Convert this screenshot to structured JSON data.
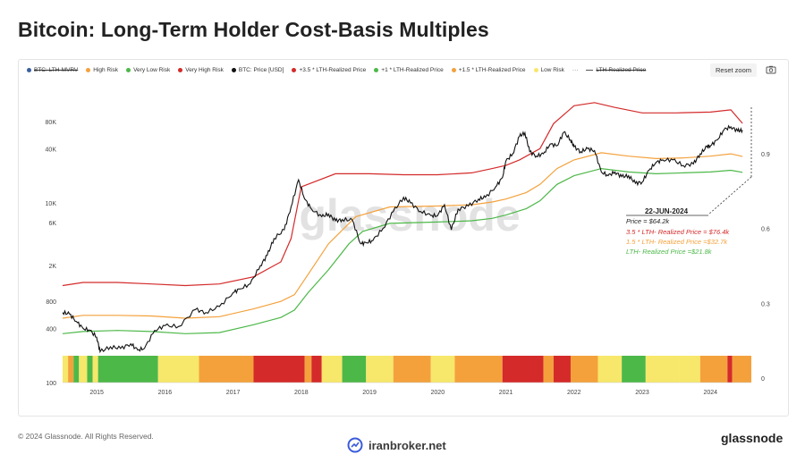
{
  "title": "Bitcoin: Long-Term Holder Cost-Basis Multiples",
  "legend": [
    {
      "label": "BTC: LTH-MVRV",
      "color": "#3a5fa0",
      "style": "dot",
      "struck": true
    },
    {
      "label": "High Risk",
      "color": "#f4a13c",
      "style": "dot",
      "struck": false
    },
    {
      "label": "Very Low Risk",
      "color": "#4cb848",
      "style": "dot",
      "struck": false
    },
    {
      "label": "Very High Risk",
      "color": "#d42a2a",
      "style": "dot",
      "struck": false
    },
    {
      "label": "BTC: Price [USD]",
      "color": "#111111",
      "style": "dot",
      "struck": false
    },
    {
      "label": "+3.5 * LTH-Realized Price",
      "color": "#d42a2a",
      "style": "dot",
      "struck": false
    },
    {
      "label": "+1 * LTH-Realized Price",
      "color": "#4cb848",
      "style": "dot",
      "struck": false
    },
    {
      "label": "+1.5 * LTH-Realized Price",
      "color": "#f4a13c",
      "style": "dot",
      "struck": false
    },
    {
      "label": "Low Risk",
      "color": "#f7e76a",
      "style": "dot",
      "struck": false
    },
    {
      "label": "",
      "color": "#555555",
      "style": "dots",
      "struck": false
    },
    {
      "label": "LTH-Realized Price",
      "color": "#555555",
      "style": "dash",
      "struck": true
    }
  ],
  "reset_zoom": "Reset zoom",
  "camera_icon": "camera-icon",
  "watermark": "glassnode",
  "annotation": {
    "date": "22-JUN-2024",
    "price": "Price = $64.2k",
    "red": "3.5 * LTH- Realized Price = $76.4k",
    "orange": "1.5 * LTH- Realized Price =$32.7k",
    "green": "LTH- Realized Price =$21.8k"
  },
  "footer": "© 2024 Glassnode. All Rights Reserved.",
  "broker": "iranbroker.net",
  "brand": "glassnode",
  "chart_data": {
    "type": "line",
    "y_scale": "log",
    "ylim": [
      100,
      200000
    ],
    "y_ticks": [
      100,
      400,
      800,
      2000,
      6000,
      10000,
      40000,
      80000
    ],
    "y_tick_labels": [
      "100",
      "400",
      "800",
      "2K",
      "6K",
      "10K",
      "40K",
      "80K"
    ],
    "y2_ticks": [
      0,
      0.3,
      0.6,
      0.9
    ],
    "y2_tick_labels": [
      "0",
      "0.3",
      "0.6",
      "0.9"
    ],
    "x_ticks": [
      "2015",
      "2016",
      "2017",
      "2018",
      "2019",
      "2020",
      "2021",
      "2022",
      "2023",
      "2024"
    ],
    "x_tick_values": [
      2015,
      2016,
      2017,
      2018,
      2019,
      2020,
      2021,
      2022,
      2023,
      2024
    ],
    "xlim": [
      2014.5,
      2024.6
    ],
    "grid": false,
    "series": [
      {
        "name": "BTC: Price [USD]",
        "color": "#111111",
        "x": [
          2014.5,
          2014.6,
          2014.7,
          2014.8,
          2014.9,
          2015.0,
          2015.05,
          2015.2,
          2015.35,
          2015.5,
          2015.6,
          2015.7,
          2015.85,
          2016.0,
          2016.2,
          2016.45,
          2016.6,
          2016.8,
          2017.0,
          2017.1,
          2017.25,
          2017.4,
          2017.5,
          2017.6,
          2017.75,
          2017.85,
          2017.96,
          2018.05,
          2018.15,
          2018.3,
          2018.4,
          2018.5,
          2018.6,
          2018.75,
          2018.87,
          2018.95,
          2019.05,
          2019.2,
          2019.35,
          2019.5,
          2019.6,
          2019.75,
          2019.9,
          2020.0,
          2020.1,
          2020.2,
          2020.3,
          2020.45,
          2020.6,
          2020.7,
          2020.85,
          2020.95,
          2021.0,
          2021.1,
          2021.2,
          2021.28,
          2021.35,
          2021.45,
          2021.55,
          2021.65,
          2021.75,
          2021.85,
          2021.95,
          2022.0,
          2022.1,
          2022.2,
          2022.3,
          2022.4,
          2022.5,
          2022.6,
          2022.7,
          2022.8,
          2022.9,
          2023.0,
          2023.1,
          2023.2,
          2023.3,
          2023.45,
          2023.6,
          2023.75,
          2023.85,
          2023.95,
          2024.0,
          2024.1,
          2024.2,
          2024.3,
          2024.4,
          2024.47
        ],
        "values": [
          600,
          580,
          480,
          400,
          380,
          320,
          220,
          250,
          240,
          270,
          230,
          240,
          380,
          430,
          420,
          650,
          600,
          700,
          1000,
          1100,
          1250,
          2000,
          2600,
          4000,
          5000,
          9000,
          18000,
          11000,
          8500,
          7000,
          7500,
          6300,
          6500,
          6400,
          3500,
          3600,
          3800,
          5200,
          8000,
          11500,
          10000,
          8000,
          7200,
          7200,
          9500,
          5000,
          8500,
          9200,
          11000,
          11500,
          15000,
          19000,
          29000,
          35000,
          55000,
          60000,
          37000,
          33000,
          35000,
          45000,
          43000,
          61000,
          50000,
          42000,
          37000,
          40000,
          38000,
          22000,
          20000,
          22000,
          19500,
          20000,
          16500,
          17000,
          23000,
          28000,
          30000,
          30000,
          26000,
          27000,
          35000,
          42000,
          43000,
          50000,
          65000,
          70000,
          63000,
          64200
        ]
      },
      {
        "name": "+3.5 * LTH-Realized Price",
        "color": "#d42a2a",
        "x": [
          2014.5,
          2014.8,
          2015.3,
          2015.8,
          2016.3,
          2016.8,
          2017.3,
          2017.7,
          2017.85,
          2018.0,
          2018.5,
          2019.0,
          2019.5,
          2020.0,
          2020.5,
          2020.8,
          2021.0,
          2021.2,
          2021.5,
          2021.7,
          2022.0,
          2022.3,
          2022.6,
          2023.0,
          2023.5,
          2024.0,
          2024.3,
          2024.47
        ],
        "values": [
          1200,
          1300,
          1300,
          1250,
          1200,
          1250,
          1500,
          2200,
          4000,
          15000,
          21000,
          21000,
          20500,
          20500,
          21500,
          24000,
          26000,
          30000,
          40000,
          76000,
          120000,
          130000,
          115000,
          100000,
          100000,
          102000,
          108000,
          76400
        ]
      },
      {
        "name": "+1.5 * LTH-Realized Price",
        "color": "#f4a13c",
        "x": [
          2014.5,
          2014.8,
          2015.3,
          2015.8,
          2016.3,
          2016.8,
          2017.3,
          2017.7,
          2017.9,
          2018.1,
          2018.4,
          2018.8,
          2019.3,
          2020.0,
          2020.5,
          2020.8,
          2021.0,
          2021.3,
          2021.5,
          2021.75,
          2022.0,
          2022.4,
          2022.8,
          2023.2,
          2023.6,
          2024.0,
          2024.3,
          2024.47
        ],
        "values": [
          520,
          560,
          560,
          550,
          520,
          540,
          660,
          800,
          950,
          1600,
          3500,
          7000,
          9000,
          9200,
          9500,
          10200,
          11000,
          13000,
          16000,
          24000,
          30000,
          36000,
          33000,
          31000,
          31500,
          33000,
          35000,
          32700
        ]
      },
      {
        "name": "LTH-Realized Price",
        "color": "#4cb848",
        "x": [
          2014.5,
          2014.8,
          2015.3,
          2015.8,
          2016.3,
          2016.8,
          2017.3,
          2017.7,
          2017.9,
          2018.1,
          2018.4,
          2018.7,
          2018.9,
          2019.3,
          2020.0,
          2020.5,
          2020.8,
          2021.0,
          2021.3,
          2021.5,
          2021.75,
          2022.0,
          2022.4,
          2022.8,
          2023.2,
          2023.6,
          2024.0,
          2024.3,
          2024.47
        ],
        "values": [
          350,
          370,
          380,
          370,
          350,
          360,
          440,
          530,
          640,
          1000,
          1800,
          3500,
          4800,
          5900,
          6100,
          6300,
          6700,
          7300,
          8600,
          10500,
          16000,
          20000,
          24000,
          22000,
          21000,
          21500,
          22000,
          23000,
          21800
        ]
      }
    ],
    "risk_band": [
      {
        "from": 2014.5,
        "to": 2014.58,
        "color": "#f7e76a"
      },
      {
        "from": 2014.58,
        "to": 2014.66,
        "color": "#f4a13c"
      },
      {
        "from": 2014.66,
        "to": 2014.74,
        "color": "#4cb848"
      },
      {
        "from": 2014.74,
        "to": 2014.86,
        "color": "#f7e76a"
      },
      {
        "from": 2014.86,
        "to": 2014.94,
        "color": "#4cb848"
      },
      {
        "from": 2014.94,
        "to": 2015.02,
        "color": "#f7e76a"
      },
      {
        "from": 2015.02,
        "to": 2015.9,
        "color": "#4cb848"
      },
      {
        "from": 2015.9,
        "to": 2016.5,
        "color": "#f7e76a"
      },
      {
        "from": 2016.5,
        "to": 2017.3,
        "color": "#f4a13c"
      },
      {
        "from": 2017.3,
        "to": 2018.05,
        "color": "#d42a2a"
      },
      {
        "from": 2018.05,
        "to": 2018.15,
        "color": "#f4a13c"
      },
      {
        "from": 2018.15,
        "to": 2018.3,
        "color": "#d42a2a"
      },
      {
        "from": 2018.3,
        "to": 2018.6,
        "color": "#f7e76a"
      },
      {
        "from": 2018.6,
        "to": 2018.95,
        "color": "#4cb848"
      },
      {
        "from": 2018.95,
        "to": 2019.35,
        "color": "#f7e76a"
      },
      {
        "from": 2019.35,
        "to": 2019.9,
        "color": "#f4a13c"
      },
      {
        "from": 2019.9,
        "to": 2020.25,
        "color": "#f7e76a"
      },
      {
        "from": 2020.25,
        "to": 2020.95,
        "color": "#f4a13c"
      },
      {
        "from": 2020.95,
        "to": 2021.55,
        "color": "#d42a2a"
      },
      {
        "from": 2021.55,
        "to": 2021.7,
        "color": "#f4a13c"
      },
      {
        "from": 2021.7,
        "to": 2021.95,
        "color": "#d42a2a"
      },
      {
        "from": 2021.95,
        "to": 2022.35,
        "color": "#f4a13c"
      },
      {
        "from": 2022.35,
        "to": 2022.7,
        "color": "#f7e76a"
      },
      {
        "from": 2022.7,
        "to": 2023.05,
        "color": "#4cb848"
      },
      {
        "from": 2023.05,
        "to": 2023.55,
        "color": "#f7e76a"
      },
      {
        "from": 2023.55,
        "to": 2023.85,
        "color": "#f7e76a"
      },
      {
        "from": 2023.85,
        "to": 2024.25,
        "color": "#f4a13c"
      },
      {
        "from": 2024.25,
        "to": 2024.32,
        "color": "#d42a2a"
      },
      {
        "from": 2024.32,
        "to": 2024.6,
        "color": "#f4a13c"
      }
    ]
  }
}
